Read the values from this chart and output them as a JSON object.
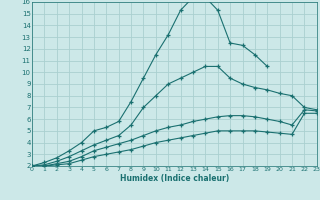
{
  "xlabel": "Humidex (Indice chaleur)",
  "xlim": [
    0,
    23
  ],
  "ylim": [
    2,
    16
  ],
  "xticks": [
    0,
    1,
    2,
    3,
    4,
    5,
    6,
    7,
    8,
    9,
    10,
    11,
    12,
    13,
    14,
    15,
    16,
    17,
    18,
    19,
    20,
    21,
    22,
    23
  ],
  "yticks": [
    2,
    3,
    4,
    5,
    6,
    7,
    8,
    9,
    10,
    11,
    12,
    13,
    14,
    15,
    16
  ],
  "bg_color": "#cce8e8",
  "grid_color": "#aad0d0",
  "line_color": "#1a7070",
  "lines": [
    {
      "x": [
        0,
        1,
        2,
        3,
        4,
        5,
        6,
        7,
        8,
        9,
        10,
        11,
        12,
        13,
        14,
        15,
        16,
        17,
        18,
        19
      ],
      "y": [
        2,
        2.3,
        2.7,
        3.3,
        4.0,
        5.0,
        5.3,
        5.8,
        7.5,
        9.5,
        11.5,
        13.2,
        15.3,
        16.4,
        16.4,
        15.3,
        12.5,
        12.3,
        11.5,
        10.5
      ]
    },
    {
      "x": [
        0,
        1,
        2,
        3,
        4,
        5,
        6,
        7,
        8,
        9,
        10,
        11,
        12,
        13,
        14,
        15,
        16,
        17,
        18,
        19,
        20,
        21,
        22,
        23
      ],
      "y": [
        2,
        2.1,
        2.4,
        2.8,
        3.3,
        3.8,
        4.2,
        4.6,
        5.5,
        7.0,
        8.0,
        9.0,
        9.5,
        10.0,
        10.5,
        10.5,
        9.5,
        9.0,
        8.7,
        8.5,
        8.2,
        8.0,
        7.0,
        6.8
      ]
    },
    {
      "x": [
        0,
        1,
        2,
        3,
        4,
        5,
        6,
        7,
        8,
        9,
        10,
        11,
        12,
        13,
        14,
        15,
        16,
        17,
        18,
        19,
        20,
        21,
        22,
        23
      ],
      "y": [
        2,
        2.0,
        2.2,
        2.4,
        2.8,
        3.3,
        3.6,
        3.9,
        4.2,
        4.6,
        5.0,
        5.3,
        5.5,
        5.8,
        6.0,
        6.2,
        6.3,
        6.3,
        6.2,
        6.0,
        5.8,
        5.5,
        6.8,
        6.7
      ]
    },
    {
      "x": [
        0,
        1,
        2,
        3,
        4,
        5,
        6,
        7,
        8,
        9,
        10,
        11,
        12,
        13,
        14,
        15,
        16,
        17,
        18,
        19,
        20,
        21,
        22,
        23
      ],
      "y": [
        2,
        2.0,
        2.1,
        2.2,
        2.5,
        2.8,
        3.0,
        3.2,
        3.4,
        3.7,
        4.0,
        4.2,
        4.4,
        4.6,
        4.8,
        5.0,
        5.0,
        5.0,
        5.0,
        4.9,
        4.8,
        4.7,
        6.5,
        6.5
      ]
    }
  ]
}
